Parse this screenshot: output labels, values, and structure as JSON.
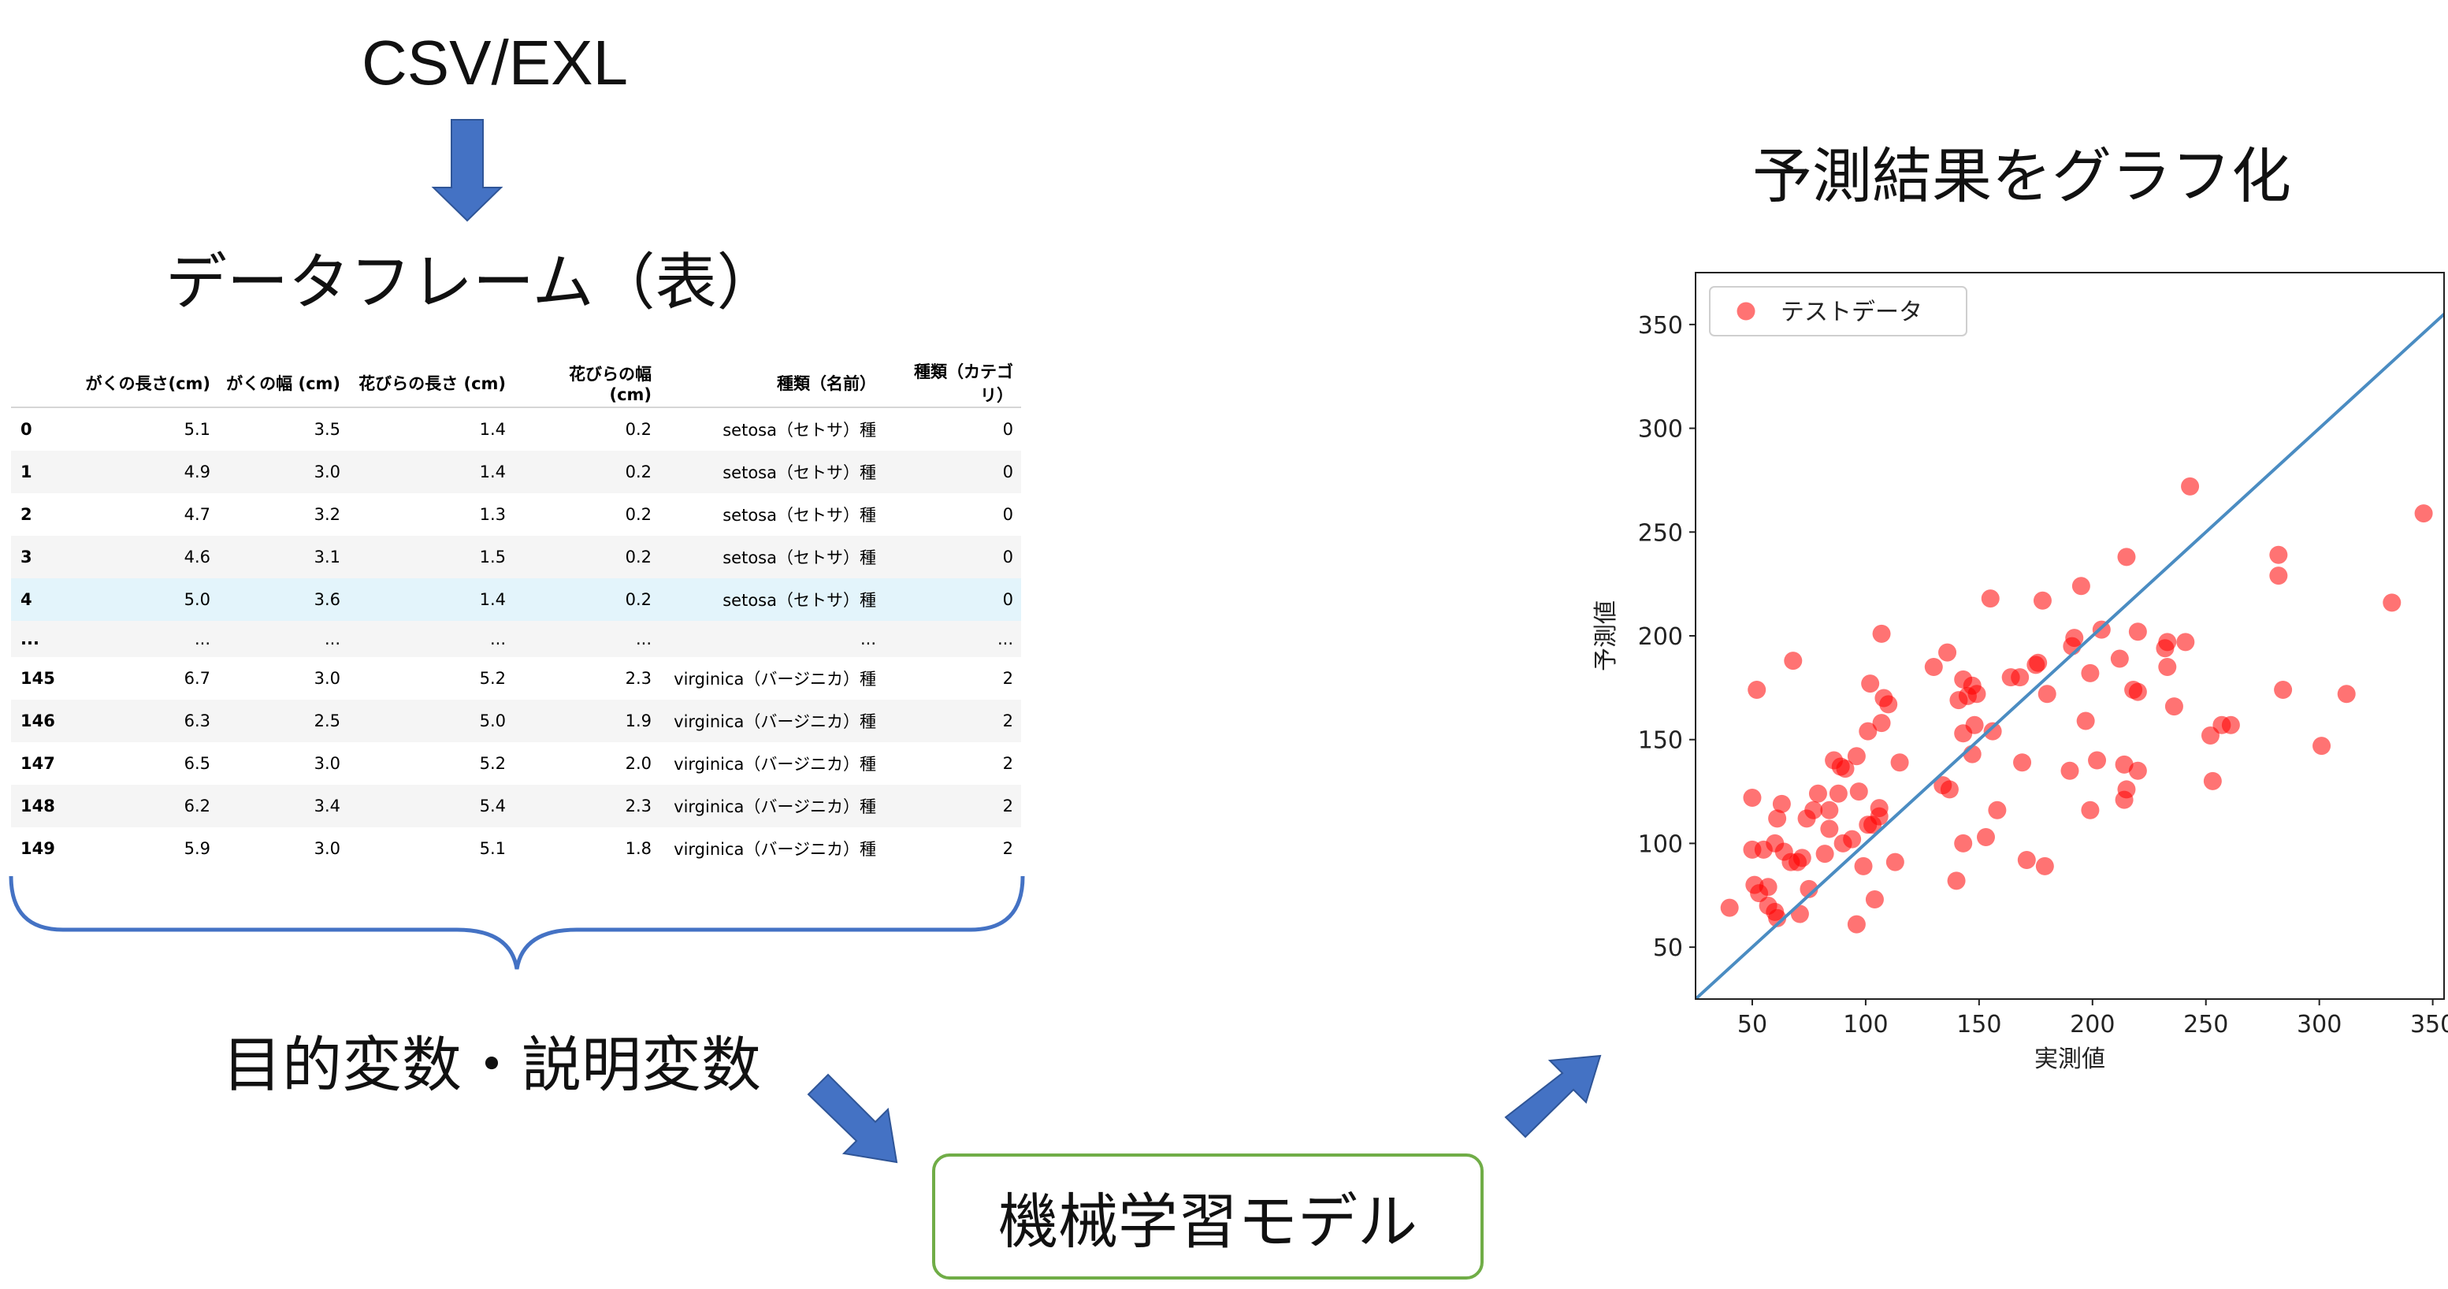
{
  "flow": {
    "source_label": "CSV/EXL",
    "dataframe_label": "データフレーム（表）",
    "variables_label": "目的変数・説明変数",
    "model_label": "機械学習モデル",
    "graph_label": "予測結果をグラフ化",
    "arrow_color": "#4472c4",
    "model_border_color": "#70ad47"
  },
  "table": {
    "columns": [
      "",
      "がくの長さ(cm)",
      "がくの幅 (cm)",
      "花びらの長さ (cm)",
      "花びらの幅 (cm)",
      "種類（名前）",
      "種類（カテゴリ）"
    ],
    "rows": [
      [
        "0",
        "5.1",
        "3.5",
        "1.4",
        "0.2",
        "setosa（セトサ）種",
        "0"
      ],
      [
        "1",
        "4.9",
        "3.0",
        "1.4",
        "0.2",
        "setosa（セトサ）種",
        "0"
      ],
      [
        "2",
        "4.7",
        "3.2",
        "1.3",
        "0.2",
        "setosa（セトサ）種",
        "0"
      ],
      [
        "3",
        "4.6",
        "3.1",
        "1.5",
        "0.2",
        "setosa（セトサ）種",
        "0"
      ],
      [
        "4",
        "5.0",
        "3.6",
        "1.4",
        "0.2",
        "setosa（セトサ）種",
        "0"
      ],
      [
        "...",
        "...",
        "...",
        "...",
        "...",
        "...",
        "..."
      ],
      [
        "145",
        "6.7",
        "3.0",
        "5.2",
        "2.3",
        "virginica（バージニカ）種",
        "2"
      ],
      [
        "146",
        "6.3",
        "2.5",
        "5.0",
        "1.9",
        "virginica（バージニカ）種",
        "2"
      ],
      [
        "147",
        "6.5",
        "3.0",
        "5.2",
        "2.0",
        "virginica（バージニカ）種",
        "2"
      ],
      [
        "148",
        "6.2",
        "3.4",
        "5.4",
        "2.3",
        "virginica（バージニカ）種",
        "2"
      ],
      [
        "149",
        "5.9",
        "3.0",
        "5.1",
        "1.8",
        "virginica（バージニカ）種",
        "2"
      ]
    ],
    "highlight_row": 4
  },
  "chart_data": {
    "type": "scatter",
    "xlabel": "実測値",
    "ylabel": "予測値",
    "xlim": [
      25,
      355
    ],
    "ylim": [
      25,
      375
    ],
    "xticks": [
      50,
      100,
      150,
      200,
      250,
      300,
      350
    ],
    "yticks": [
      50,
      100,
      150,
      200,
      250,
      300,
      350
    ],
    "grid": false,
    "legend": "top-left",
    "point_color": "#ff0000",
    "line_color": "#4a8cc2",
    "reference_line": "y = x",
    "series": [
      {
        "name": "テストデータ",
        "points": [
          [
            40,
            69
          ],
          [
            50,
            122
          ],
          [
            50,
            97
          ],
          [
            52,
            174
          ],
          [
            51,
            80
          ],
          [
            53,
            76
          ],
          [
            55,
            97
          ],
          [
            57,
            79
          ],
          [
            57,
            70
          ],
          [
            60,
            67
          ],
          [
            60,
            100
          ],
          [
            61,
            64
          ],
          [
            61,
            112
          ],
          [
            63,
            119
          ],
          [
            64,
            96
          ],
          [
            67,
            91
          ],
          [
            68,
            188
          ],
          [
            70,
            91
          ],
          [
            71,
            66
          ],
          [
            72,
            93
          ],
          [
            74,
            112
          ],
          [
            75,
            78
          ],
          [
            77,
            116
          ],
          [
            79,
            124
          ],
          [
            82,
            95
          ],
          [
            84,
            107
          ],
          [
            84,
            116
          ],
          [
            86,
            140
          ],
          [
            88,
            124
          ],
          [
            89,
            137
          ],
          [
            90,
            100
          ],
          [
            91,
            136
          ],
          [
            94,
            102
          ],
          [
            96,
            142
          ],
          [
            96,
            61
          ],
          [
            97,
            125
          ],
          [
            99,
            89
          ],
          [
            101,
            109
          ],
          [
            101,
            154
          ],
          [
            102,
            177
          ],
          [
            103,
            109
          ],
          [
            104,
            73
          ],
          [
            106,
            113
          ],
          [
            106,
            117
          ],
          [
            107,
            201
          ],
          [
            107,
            158
          ],
          [
            108,
            170
          ],
          [
            110,
            167
          ],
          [
            113,
            91
          ],
          [
            115,
            139
          ],
          [
            130,
            185
          ],
          [
            134,
            128
          ],
          [
            136,
            192
          ],
          [
            137,
            126
          ],
          [
            140,
            82
          ],
          [
            141,
            169
          ],
          [
            143,
            100
          ],
          [
            143,
            153
          ],
          [
            143,
            179
          ],
          [
            145,
            171
          ],
          [
            147,
            143
          ],
          [
            147,
            176
          ],
          [
            148,
            157
          ],
          [
            149,
            172
          ],
          [
            153,
            103
          ],
          [
            155,
            218
          ],
          [
            156,
            154
          ],
          [
            158,
            116
          ],
          [
            164,
            180
          ],
          [
            168,
            180
          ],
          [
            169,
            139
          ],
          [
            171,
            92
          ],
          [
            175,
            186
          ],
          [
            176,
            187
          ],
          [
            178,
            217
          ],
          [
            179,
            89
          ],
          [
            180,
            172
          ],
          [
            190,
            135
          ],
          [
            191,
            195
          ],
          [
            192,
            199
          ],
          [
            195,
            224
          ],
          [
            197,
            159
          ],
          [
            199,
            116
          ],
          [
            199,
            182
          ],
          [
            202,
            140
          ],
          [
            204,
            203
          ],
          [
            212,
            189
          ],
          [
            214,
            121
          ],
          [
            214,
            138
          ],
          [
            215,
            238
          ],
          [
            215,
            126
          ],
          [
            218,
            174
          ],
          [
            220,
            135
          ],
          [
            220,
            173
          ],
          [
            220,
            202
          ],
          [
            232,
            194
          ],
          [
            233,
            185
          ],
          [
            233,
            197
          ],
          [
            236,
            166
          ],
          [
            241,
            197
          ],
          [
            243,
            272
          ],
          [
            252,
            152
          ],
          [
            253,
            130
          ],
          [
            257,
            157
          ],
          [
            261,
            157
          ],
          [
            282,
            239
          ],
          [
            282,
            229
          ],
          [
            284,
            174
          ],
          [
            301,
            147
          ],
          [
            312,
            172
          ],
          [
            332,
            216
          ],
          [
            346,
            259
          ]
        ]
      }
    ]
  }
}
